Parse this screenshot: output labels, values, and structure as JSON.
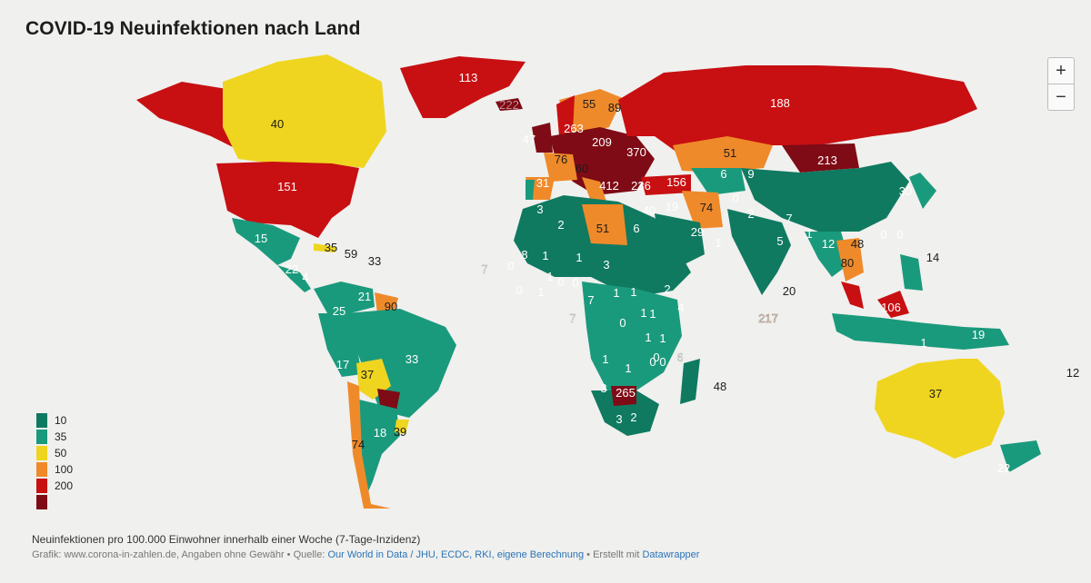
{
  "title": "COVID-19 Neuinfektionen nach Land",
  "controls": {
    "zoom_in": "+",
    "zoom_out": "−"
  },
  "legend": [
    {
      "label": "10",
      "color": "#0f7a60"
    },
    {
      "label": "35",
      "color": "#1a9a7c"
    },
    {
      "label": "50",
      "color": "#efd51f"
    },
    {
      "label": "100",
      "color": "#ef8a2a"
    },
    {
      "label": "200",
      "color": "#c80f12"
    },
    {
      "label": "",
      "color": "#7e0b15"
    }
  ],
  "footer": {
    "description": "Neuinfektionen pro 100.000 Einwohner innerhalb einer Woche (7-Tage-Inzidenz)",
    "credit_prefix": "Grafik: www.corona-in-zahlen.de, Angaben ohne Gewähr • Quelle: ",
    "source_link": "Our World in Data / JHU, ECDC, RKI, eigene Berechnung",
    "created_prefix": " • Erstellt mit ",
    "tool_link": "Datawrapper"
  },
  "map_labels": [
    {
      "text": "113"
    },
    {
      "text": "222"
    },
    {
      "text": "40"
    },
    {
      "text": "188"
    },
    {
      "text": "55"
    },
    {
      "text": "89"
    },
    {
      "text": "47"
    },
    {
      "text": "263"
    },
    {
      "text": "209"
    },
    {
      "text": "370"
    },
    {
      "text": "76"
    },
    {
      "text": "60"
    },
    {
      "text": "412"
    },
    {
      "text": "236"
    },
    {
      "text": "156"
    },
    {
      "text": "51"
    },
    {
      "text": "213"
    },
    {
      "text": "151"
    },
    {
      "text": "31"
    },
    {
      "text": "6"
    },
    {
      "text": "9"
    },
    {
      "text": "30"
    },
    {
      "text": "3"
    },
    {
      "text": "2"
    },
    {
      "text": "51"
    },
    {
      "text": "6"
    },
    {
      "text": "40"
    },
    {
      "text": "19"
    },
    {
      "text": "74"
    },
    {
      "text": "0"
    },
    {
      "text": "2"
    },
    {
      "text": "7"
    },
    {
      "text": "15"
    },
    {
      "text": "35"
    },
    {
      "text": "59"
    },
    {
      "text": "33"
    },
    {
      "text": "29"
    },
    {
      "text": "1"
    },
    {
      "text": "5"
    },
    {
      "text": "1"
    },
    {
      "text": "12"
    },
    {
      "text": "48"
    },
    {
      "text": "0"
    },
    {
      "text": "0"
    },
    {
      "text": "22"
    },
    {
      "text": "7"
    },
    {
      "text": "8"
    },
    {
      "text": "80"
    },
    {
      "text": "14"
    },
    {
      "text": "4"
    },
    {
      "text": "21"
    },
    {
      "text": "90"
    },
    {
      "text": "25"
    },
    {
      "text": "20"
    },
    {
      "text": "7"
    },
    {
      "text": "217"
    },
    {
      "text": "106"
    },
    {
      "text": "19"
    },
    {
      "text": "6"
    },
    {
      "text": "17"
    },
    {
      "text": "37"
    },
    {
      "text": "33"
    },
    {
      "text": "48"
    },
    {
      "text": "12"
    },
    {
      "text": "37"
    },
    {
      "text": "265"
    },
    {
      "text": "3"
    },
    {
      "text": "3"
    },
    {
      "text": "2"
    },
    {
      "text": "18"
    },
    {
      "text": "39"
    },
    {
      "text": "74"
    },
    {
      "text": "22"
    },
    {
      "text": "0"
    },
    {
      "text": "1"
    },
    {
      "text": "1"
    },
    {
      "text": "0"
    },
    {
      "text": "1"
    },
    {
      "text": "3"
    },
    {
      "text": "1"
    },
    {
      "text": "0"
    },
    {
      "text": "0"
    },
    {
      "text": "2"
    },
    {
      "text": "7"
    },
    {
      "text": "1"
    },
    {
      "text": "1"
    },
    {
      "text": "4"
    },
    {
      "text": "1"
    },
    {
      "text": "0"
    },
    {
      "text": "1"
    },
    {
      "text": "1"
    },
    {
      "text": "1"
    },
    {
      "text": "1"
    },
    {
      "text": "0"
    },
    {
      "text": "0"
    },
    {
      "text": "1"
    },
    {
      "text": "0"
    },
    {
      "text": "1"
    }
  ]
}
